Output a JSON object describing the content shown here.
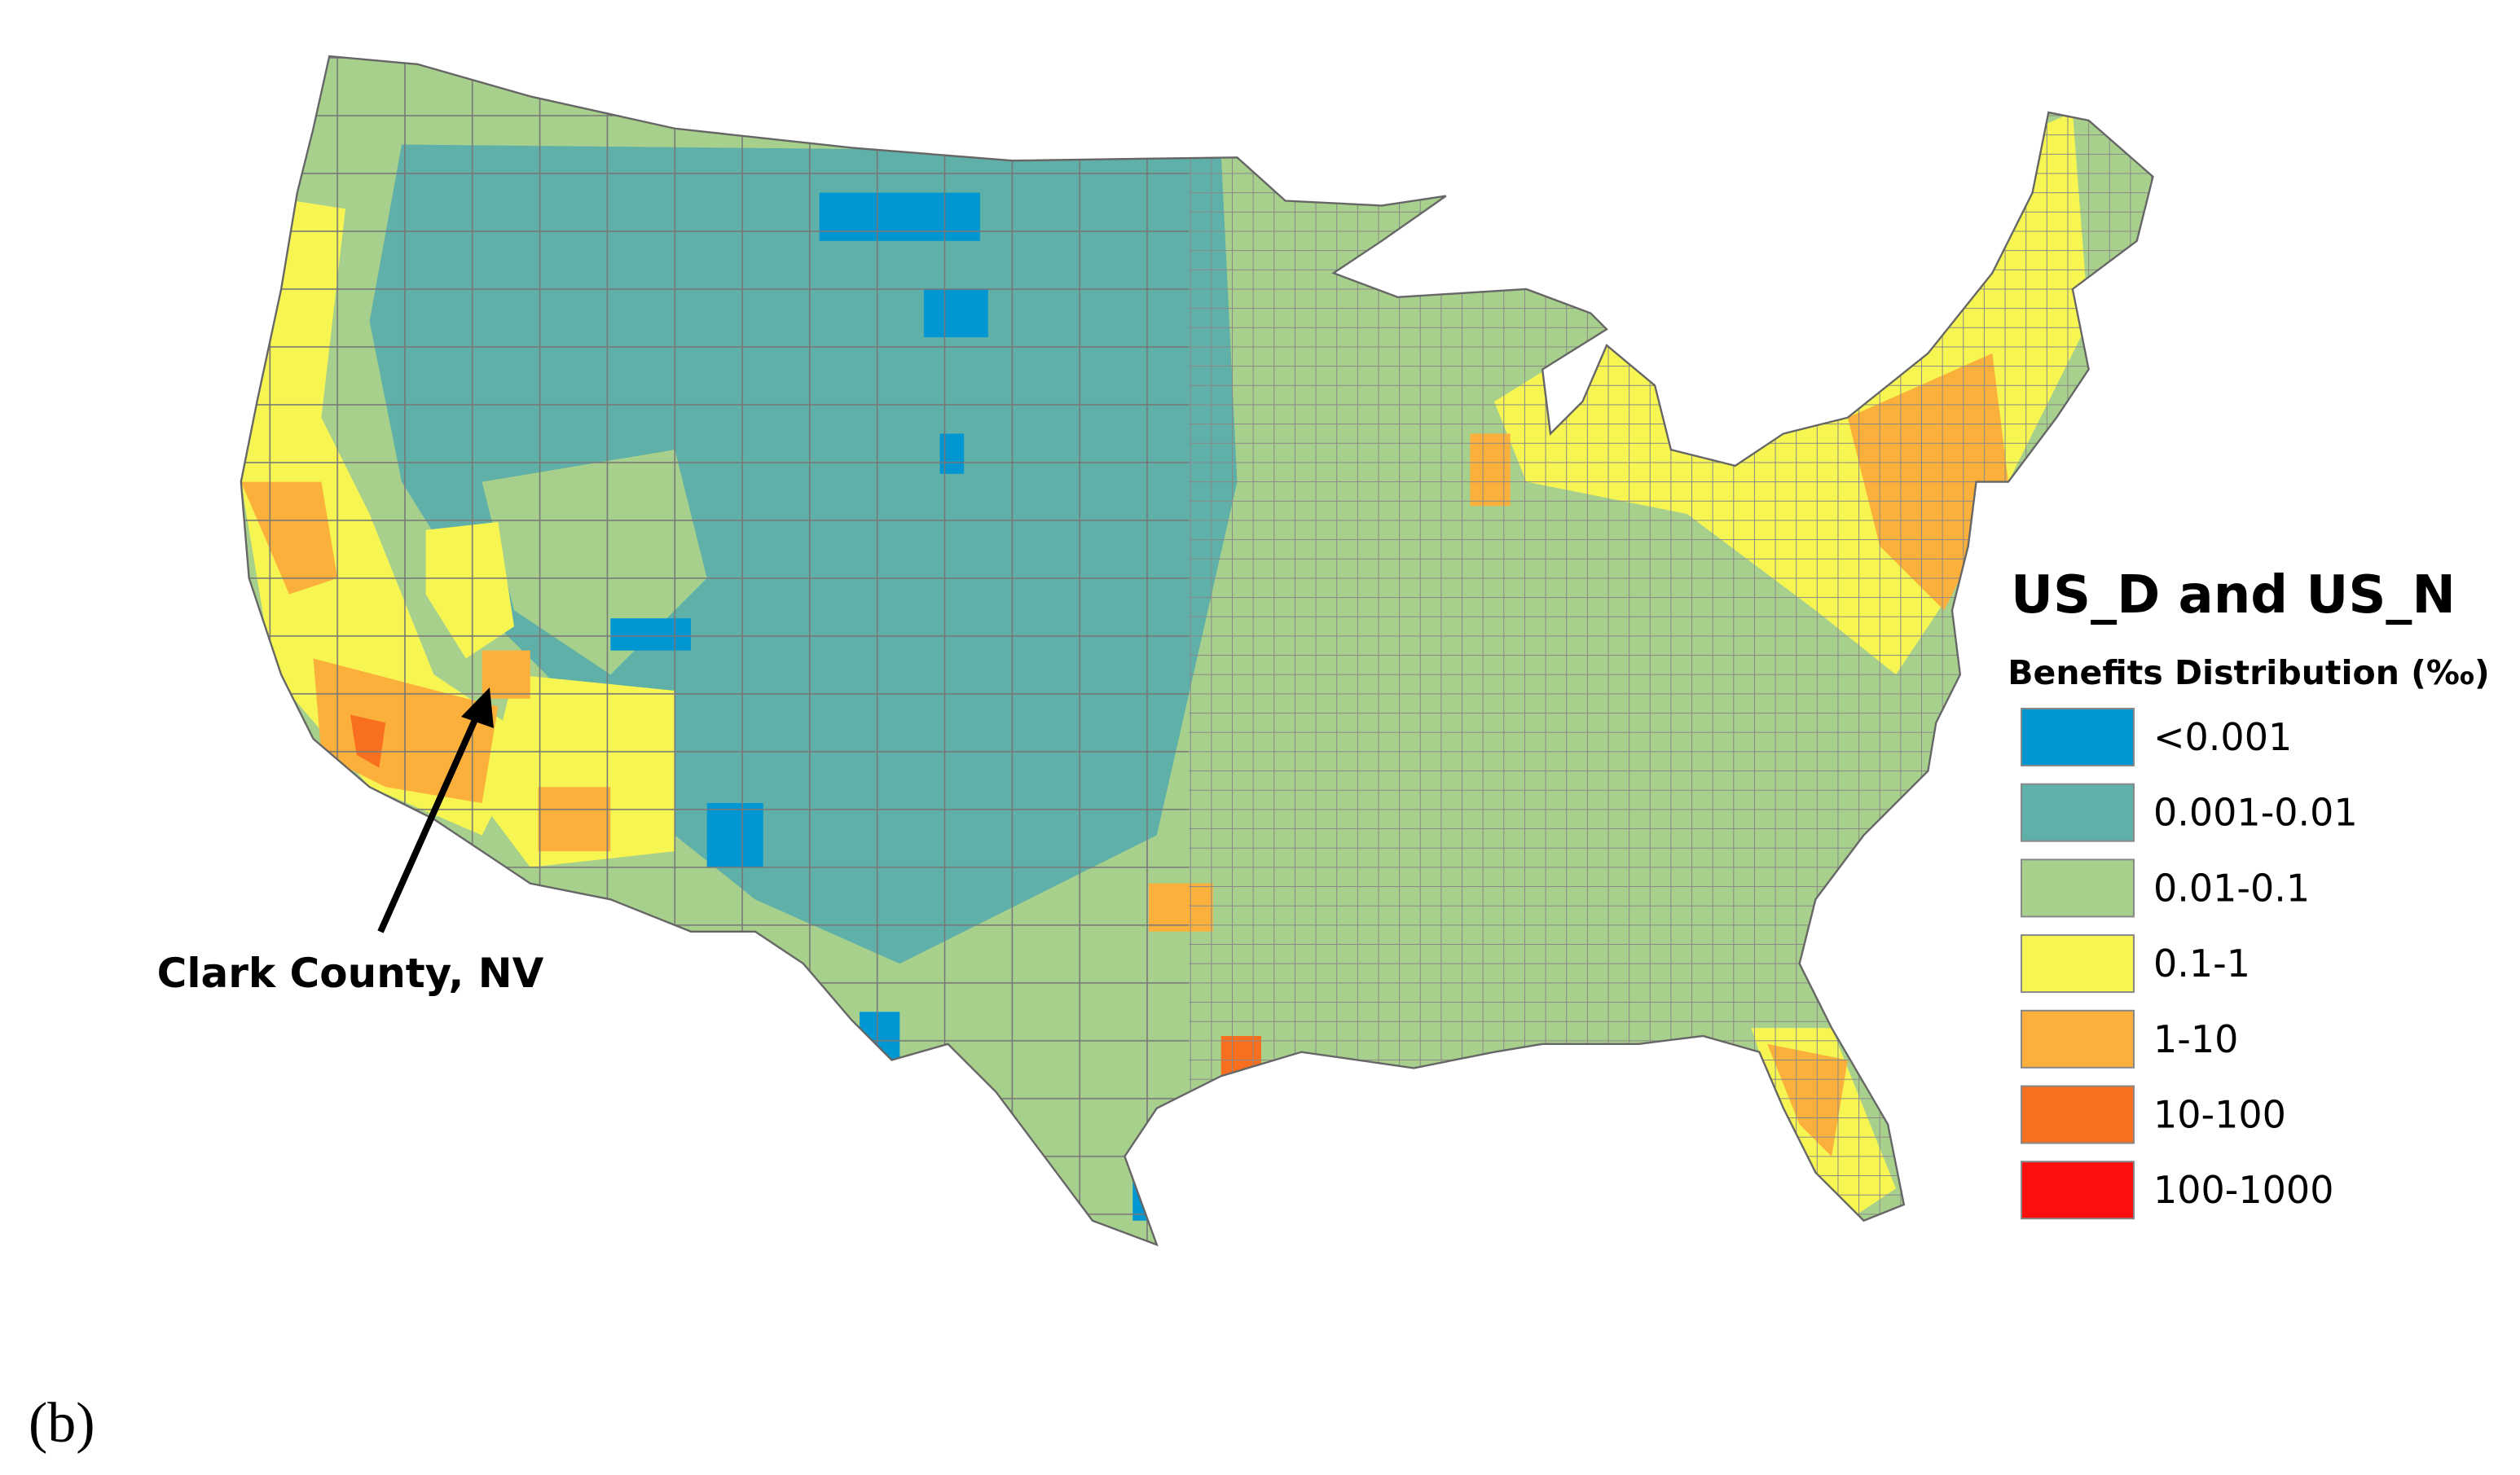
{
  "title": "US_D and US_N",
  "legend": {
    "title": "Benefits Distribution (‰)",
    "items": [
      {
        "label": "<0.001",
        "color": "#0096d2"
      },
      {
        "label": "0.001-0.01",
        "color": "#5fb0a8"
      },
      {
        "label": "0.01-0.1",
        "color": "#a8d08d"
      },
      {
        "label": "0.1-1",
        "color": "#f7f552"
      },
      {
        "label": "1-10",
        "color": "#fbb03b"
      },
      {
        "label": "10-100",
        "color": "#f8701f"
      },
      {
        "label": "100-1000",
        "color": "#fe0e0e"
      }
    ]
  },
  "annotation": "Clark County, NV",
  "panel_label": "(b)"
}
